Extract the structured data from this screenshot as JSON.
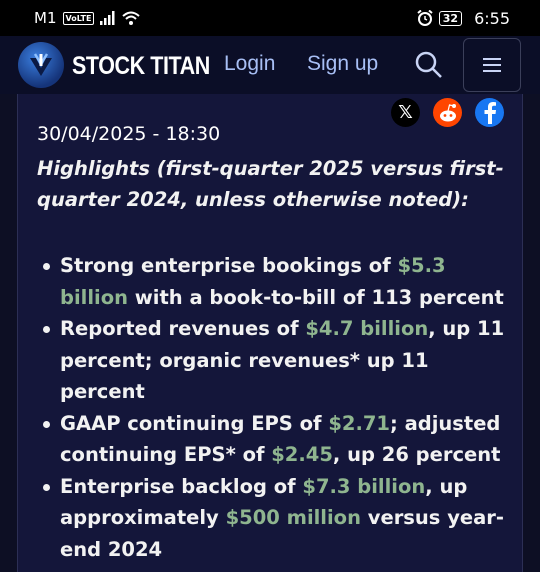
{
  "status_bar": {
    "carrier": "M1",
    "volte": "VoLTE",
    "battery": "32",
    "time": "6:55"
  },
  "header": {
    "logo_text": "STOCK TITAN",
    "login": "Login",
    "signup": "Sign up"
  },
  "share": {
    "x_glyph": "𝕏"
  },
  "article": {
    "dateline": "30/04/2025 - 18:30",
    "highlights": "Highlights (first-quarter 2025 versus first-quarter 2024, unless otherwise noted):",
    "bullets": [
      {
        "a": "Strong enterprise bookings of ",
        "b": "$5.3 billion",
        "c": " with a book-to-bill of 113 percent",
        "d": "",
        "e": ""
      },
      {
        "a": "Reported revenues of ",
        "b": "$4.7 billion",
        "c": ", up 11 percent; organic revenues* up 11 percent",
        "d": "",
        "e": ""
      },
      {
        "a": "GAAP continuing EPS of ",
        "b": "$2.71",
        "c": "; adjusted continuing EPS* of ",
        "d": "$2.45",
        "e": ", up 26 percent"
      },
      {
        "a": "Enterprise backlog of ",
        "b": "$7.3 billion",
        "c": ", up approximately ",
        "d": "$500 million",
        "e": " versus year-end 2024"
      }
    ]
  },
  "colors": {
    "highlight_green": "#8fb58f",
    "nav_link": "#a8bff5",
    "card_bg": "#14163a"
  }
}
